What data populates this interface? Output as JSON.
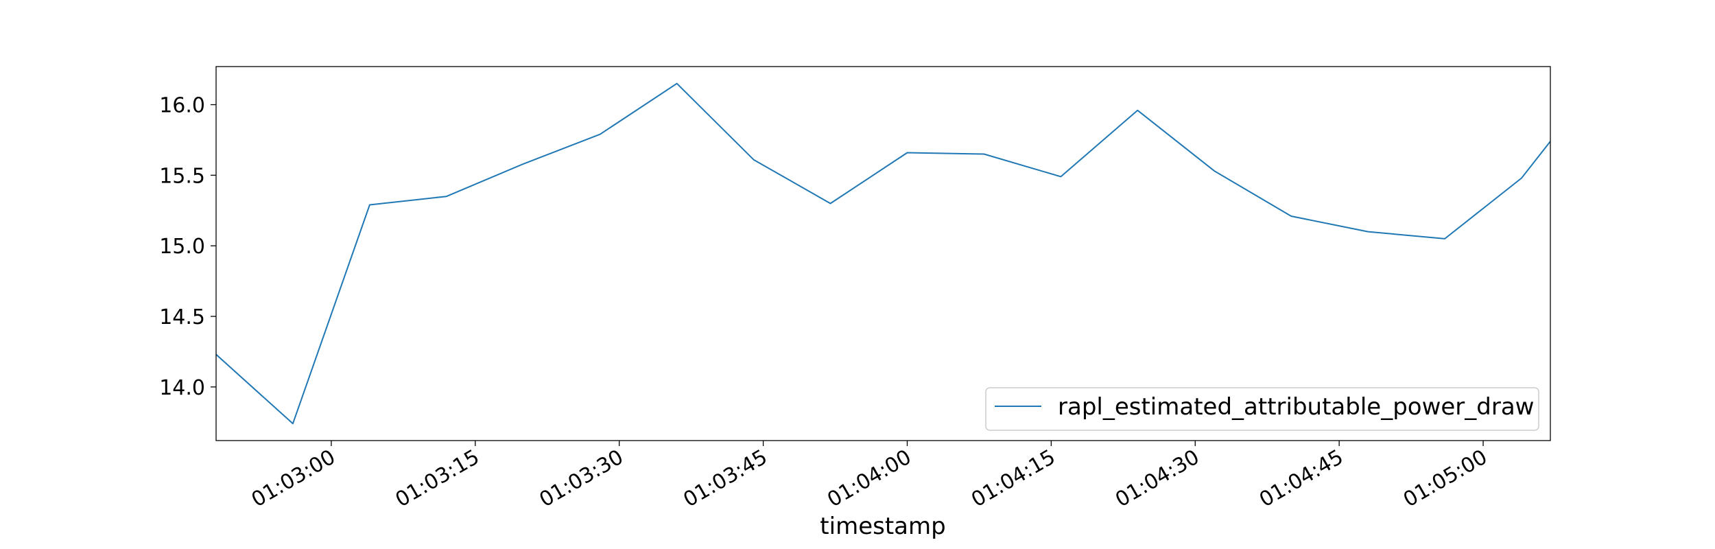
{
  "chart_data": {
    "type": "line",
    "title": "",
    "xlabel": "timestamp",
    "ylabel": "",
    "x_start": "01:02:48",
    "x_end": "01:05:07",
    "xlim": [
      "01:02:48",
      "01:05:07"
    ],
    "ylim": [
      13.62,
      16.27
    ],
    "x_ticks": [
      "01:03:00",
      "01:03:15",
      "01:03:30",
      "01:03:45",
      "01:04:00",
      "01:04:15",
      "01:04:30",
      "01:04:45",
      "01:05:00"
    ],
    "y_ticks": [
      "14.0",
      "14.5",
      "15.0",
      "15.5",
      "16.0"
    ],
    "grid": false,
    "legend_position": "lower-right",
    "series": [
      {
        "name": "rapl_estimated_attributable_power_draw",
        "color": "#1f77b4",
        "x": [
          "01:02:48",
          "01:02:56",
          "01:03:04",
          "01:03:12",
          "01:03:20",
          "01:03:28",
          "01:03:36",
          "01:03:44",
          "01:03:52",
          "01:04:00",
          "01:04:08",
          "01:04:16",
          "01:04:24",
          "01:04:32",
          "01:04:40",
          "01:04:48",
          "01:04:56",
          "01:05:04",
          "01:05:07"
        ],
        "values": [
          14.23,
          13.74,
          15.29,
          15.35,
          15.58,
          15.79,
          16.15,
          15.61,
          15.3,
          15.66,
          15.65,
          15.49,
          15.96,
          15.53,
          15.21,
          15.1,
          15.05,
          15.48,
          15.74
        ]
      }
    ]
  }
}
